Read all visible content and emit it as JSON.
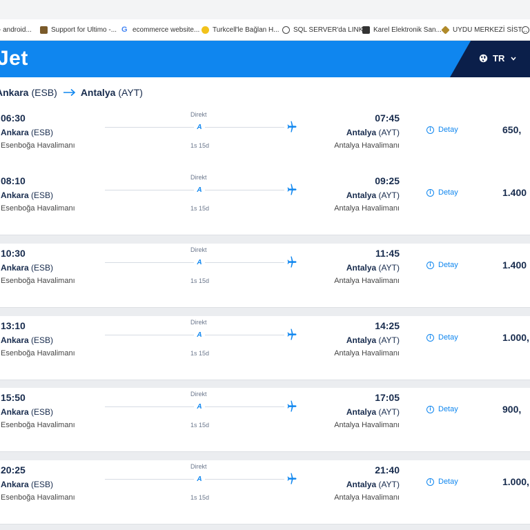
{
  "bookmarks": [
    {
      "label": "- android...",
      "icon": "bookmark-icon",
      "color": "#ffffff"
    },
    {
      "label": "Support for Ultimo -...",
      "icon": "ultimo-icon",
      "color": "#7a5a2a"
    },
    {
      "label": "ecommerce website...",
      "icon": "google-icon",
      "color": "#4285f4"
    },
    {
      "label": "Turkcell'le Bağlan H...",
      "icon": "turkcell-icon",
      "color": "#f2c21b"
    },
    {
      "label": "SQL SERVER'da LINK...",
      "icon": "globe-icon",
      "color": "#444444"
    },
    {
      "label": "Karel Elektronik San...",
      "icon": "karel-icon",
      "color": "#333333"
    },
    {
      "label": "UYDU MERKEZİ SİST...",
      "icon": "uydu-icon",
      "color": "#b08a2a"
    },
    {
      "label": "",
      "icon": "globe-icon",
      "color": "#444444"
    }
  ],
  "header": {
    "logo": "Jet",
    "brand_color": "#0f86ef",
    "language": "TR"
  },
  "route": {
    "from_city": "Ankara",
    "from_code": "(ESB)",
    "to_city": "Antalya",
    "to_code": "(AYT)"
  },
  "flights": [
    {
      "dep_time": "06:30",
      "dep_city": "Ankara",
      "dep_code": "(ESB)",
      "dep_airport": "Esenboğa Havalimanı",
      "stop": "Direkt",
      "duration": "1s 15d",
      "arr_time": "07:45",
      "arr_city": "Antalya",
      "arr_code": "(AYT)",
      "arr_airport": "Antalya Havalimanı",
      "detail": "Detay",
      "price": "650,"
    },
    {
      "dep_time": "08:10",
      "dep_city": "Ankara",
      "dep_code": "(ESB)",
      "dep_airport": "Esenboğa Havalimanı",
      "stop": "Direkt",
      "duration": "1s 15d",
      "arr_time": "09:25",
      "arr_city": "Antalya",
      "arr_code": "(AYT)",
      "arr_airport": "Antalya Havalimanı",
      "detail": "Detay",
      "price": "1.400"
    },
    {
      "dep_time": "10:30",
      "dep_city": "Ankara",
      "dep_code": "(ESB)",
      "dep_airport": "Esenboğa Havalimanı",
      "stop": "Direkt",
      "duration": "1s 15d",
      "arr_time": "11:45",
      "arr_city": "Antalya",
      "arr_code": "(AYT)",
      "arr_airport": "Antalya Havalimanı",
      "detail": "Detay",
      "price": "1.400"
    },
    {
      "dep_time": "13:10",
      "dep_city": "Ankara",
      "dep_code": "(ESB)",
      "dep_airport": "Esenboğa Havalimanı",
      "stop": "Direkt",
      "duration": "1s 15d",
      "arr_time": "14:25",
      "arr_city": "Antalya",
      "arr_code": "(AYT)",
      "arr_airport": "Antalya Havalimanı",
      "detail": "Detay",
      "price": "1.000,"
    },
    {
      "dep_time": "15:50",
      "dep_city": "Ankara",
      "dep_code": "(ESB)",
      "dep_airport": "Esenboğa Havalimanı",
      "stop": "Direkt",
      "duration": "1s 15d",
      "arr_time": "17:05",
      "arr_city": "Antalya",
      "arr_code": "(AYT)",
      "arr_airport": "Antalya Havalimanı",
      "detail": "Detay",
      "price": "900,"
    },
    {
      "dep_time": "20:25",
      "dep_city": "Ankara",
      "dep_code": "(ESB)",
      "dep_airport": "Esenboğa Havalimanı",
      "stop": "Direkt",
      "duration": "1s 15d",
      "arr_time": "21:40",
      "arr_city": "Antalya",
      "arr_code": "(AYT)",
      "arr_airport": "Antalya Havalimanı",
      "detail": "Detay",
      "price": "1.000,"
    }
  ]
}
